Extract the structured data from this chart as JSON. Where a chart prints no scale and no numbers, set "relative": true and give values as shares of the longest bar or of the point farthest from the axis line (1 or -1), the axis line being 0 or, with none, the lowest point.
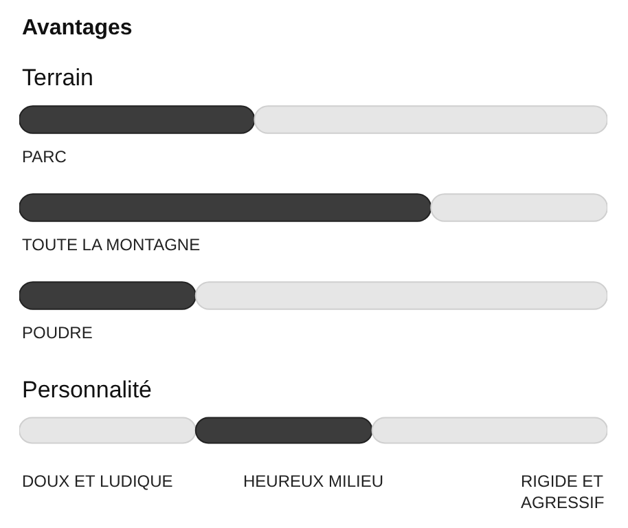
{
  "chart_data": [
    {
      "type": "bar",
      "title": "Avantages",
      "subtitle": "Terrain",
      "orientation": "horizontal",
      "stacked": true,
      "relative": true,
      "categories": [
        "PARC",
        "TOUTE LA MONTAGNE",
        "POUDRE"
      ],
      "series": [
        {
          "color": "#3c3c3c",
          "values": [
            0.4,
            0.7,
            0.3
          ]
        },
        {
          "color": "#e6e6e6",
          "values": [
            0.6,
            0.3,
            0.7
          ]
        }
      ]
    },
    {
      "type": "bar",
      "title": "Personnalité",
      "orientation": "horizontal",
      "stacked": true,
      "relative": true,
      "categories": [
        null
      ],
      "series": [
        {
          "color": "#e6e6e6",
          "values": [
            0.3
          ]
        },
        {
          "color": "#3c3c3c",
          "values": [
            0.3
          ]
        },
        {
          "color": "#e6e6e6",
          "values": [
            0.4
          ]
        }
      ],
      "annotations": [
        "DOUX ET LUDIQUE",
        "HEUREUX MILIEU",
        "RIGIDE ET AGRESSIF"
      ]
    }
  ]
}
